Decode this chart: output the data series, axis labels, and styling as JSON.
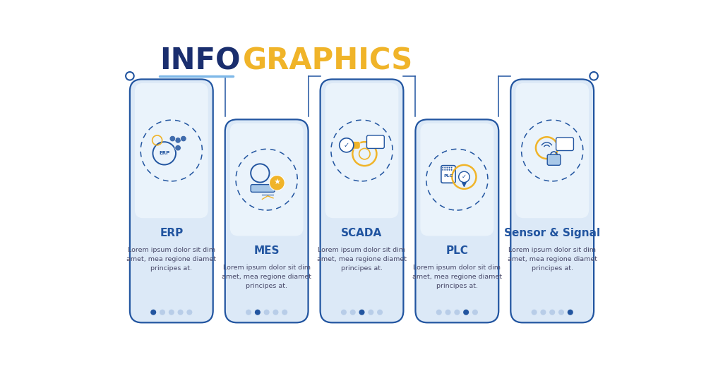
{
  "title_info": "INFO",
  "title_graphics": "GRAPHICS",
  "title_info_color": "#1a2e6e",
  "title_graphics_color": "#f0b429",
  "title_underline_color": "#7eb8e8",
  "background_color": "#ffffff",
  "card_bg_color": "#dce9f7",
  "card_border_color": "#2255a0",
  "card_inner_bg": "#eaf3fb",
  "steps": [
    {
      "title": "ERP",
      "body": "Lorem ipsum dolor sit dim\namet, mea regione diamet\nprincipes at.",
      "dots": [
        1,
        0,
        0,
        0,
        0
      ],
      "tall": true
    },
    {
      "title": "MES",
      "body": "Lorem ipsum dolor sit dim\namet, mea regione diamet\nprincipes at.",
      "dots": [
        0,
        1,
        0,
        0,
        0
      ],
      "tall": false
    },
    {
      "title": "SCADA",
      "body": "Lorem ipsum dolor sit dim\namet, mea regione diamet\nprincipes at.",
      "dots": [
        0,
        0,
        1,
        0,
        0
      ],
      "tall": true
    },
    {
      "title": "PLC",
      "body": "Lorem ipsum dolor sit dim\namet, mea regione diamet\nprincipes at.",
      "dots": [
        0,
        0,
        0,
        1,
        0
      ],
      "tall": false
    },
    {
      "title": "Sensor & Signal",
      "body": "Lorem ipsum dolor sit dim\namet, mea regione diamet\nprincipes at.",
      "dots": [
        0,
        0,
        0,
        0,
        1
      ],
      "tall": true
    }
  ],
  "dot_filled_color": "#2255a0",
  "dot_empty_color": "#b8cde8"
}
